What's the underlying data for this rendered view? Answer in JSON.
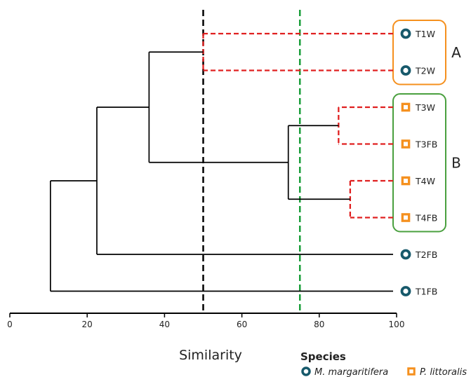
{
  "axis": {
    "title": "Similarity",
    "min": 0,
    "max": 100,
    "ticks": [
      "0",
      "20",
      "40",
      "60",
      "80",
      "100"
    ]
  },
  "thresholds": [
    {
      "value": 50,
      "color": "#000000"
    },
    {
      "value": 75,
      "color": "#1a9e3a"
    }
  ],
  "leaves": [
    {
      "label": "T1W",
      "species": "M. margaritifera"
    },
    {
      "label": "T2W",
      "species": "M. margaritifera"
    },
    {
      "label": "T3W",
      "species": "P. littoralis"
    },
    {
      "label": "T3FB",
      "species": "P. littoralis"
    },
    {
      "label": "T4W",
      "species": "P. littoralis"
    },
    {
      "label": "T4FB",
      "species": "P. littoralis"
    },
    {
      "label": "T2FB",
      "species": "M. margaritifera"
    },
    {
      "label": "T1FB",
      "species": "M. margaritifera"
    }
  ],
  "merges": [
    {
      "a": "T1W",
      "b": "T2W",
      "similarity": 50,
      "style": "dashed"
    },
    {
      "a": "T3W",
      "b": "T3FB",
      "similarity": 85,
      "style": "dashed"
    },
    {
      "a": "T4W",
      "b": "T4FB",
      "similarity": 88,
      "style": "dashed"
    },
    {
      "a": "(T3W,T3FB)",
      "b": "(T4W,T4FB)",
      "similarity": 72,
      "style": "solid"
    },
    {
      "a": "(T1W,T2W)",
      "b": "(T3W,T3FB,T4W,T4FB)",
      "similarity": 36,
      "style": "solid"
    },
    {
      "a": "(T1W..T4FB)",
      "b": "T2FB",
      "similarity": 22.5,
      "style": "solid"
    },
    {
      "a": "(T1W..T2FB)",
      "b": "T1FB",
      "similarity": 10.5,
      "style": "solid"
    }
  ],
  "groups": [
    {
      "label": "A",
      "color": "#f5901e",
      "members": [
        "T1W",
        "T2W"
      ]
    },
    {
      "label": "B",
      "color": "#4aa03f",
      "members": [
        "T3W",
        "T3FB",
        "T4W",
        "T4FB"
      ]
    }
  ],
  "legend": {
    "title": "Species",
    "items": [
      {
        "name": "M. margaritifera",
        "icon": "teal-ring-circle-icon",
        "color": "#17596b"
      },
      {
        "name": "P. littoralis",
        "icon": "orange-hollow-square-icon",
        "color": "#f5901e"
      }
    ]
  },
  "colors": {
    "dashed_branch": "#e02020",
    "solid_branch": "#000000"
  }
}
